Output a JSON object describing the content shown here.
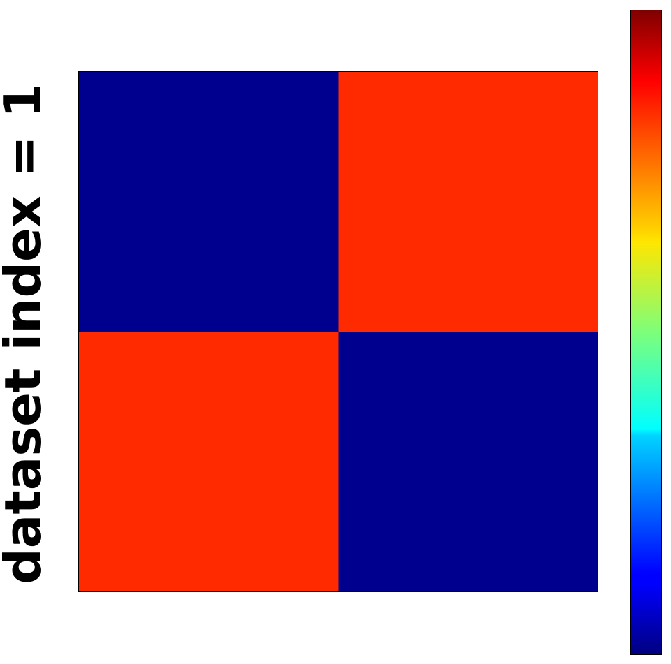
{
  "chart_data": {
    "type": "heatmap",
    "title": "",
    "xlabel": "",
    "ylabel": "dataset index = 1",
    "grid": false,
    "colormap": "jet",
    "colorbar": {
      "placement": "right",
      "ticks": []
    },
    "rows": 20,
    "cols": 20,
    "blocks": [
      {
        "name": "top-left",
        "rows": [
          0,
          10
        ],
        "cols": [
          0,
          10
        ],
        "value": 0.07
      },
      {
        "name": "top-right",
        "rows": [
          0,
          10
        ],
        "cols": [
          10,
          20
        ],
        "value": 0.86
      },
      {
        "name": "bottom-left",
        "rows": [
          10,
          20
        ],
        "cols": [
          0,
          10
        ],
        "value": 0.86
      },
      {
        "name": "bottom-right",
        "rows": [
          10,
          20
        ],
        "cols": [
          10,
          20
        ],
        "value": 0.07
      }
    ],
    "colors": {
      "low": "#00008f",
      "high": "#ff2a00"
    }
  }
}
